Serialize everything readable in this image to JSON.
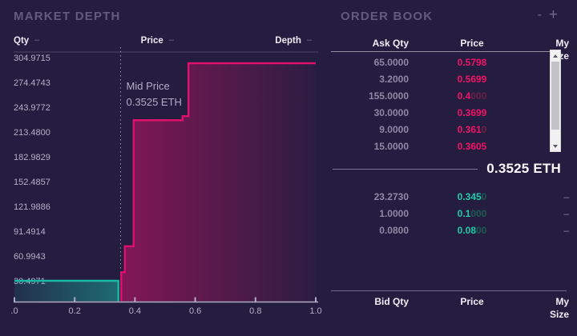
{
  "colors": {
    "background": "#241d3f",
    "ask_pink": "#e0106c",
    "ask_pink_dim": "#6c2146",
    "bid_teal": "#17b9a2",
    "bid_teal_dim": "#1d5b54",
    "axis_gray": "#b2acc6",
    "text_muted": "#8f89a6"
  },
  "chart_data": {
    "type": "area",
    "title": "MARKET DEPTH",
    "xlabel": "Price",
    "ylabel": "Qty",
    "legend": [
      {
        "label": "Qty"
      },
      {
        "label": "Price"
      },
      {
        "label": "Depth"
      }
    ],
    "legend_dash": "–",
    "x_range": [
      0,
      1.0
    ],
    "y_range": [
      0,
      310
    ],
    "x_ticks": {
      "values": [
        0,
        0.2,
        0.4,
        0.6,
        0.8,
        1.0
      ],
      "labels": [
        ".0",
        "0.2",
        "0.4",
        "0.6",
        "0.8",
        "1.0"
      ]
    },
    "y_ticks": {
      "values": [
        30.4971,
        60.9943,
        91.4914,
        121.9886,
        152.4857,
        182.9829,
        213.48,
        243.9772,
        274.4743,
        304.9715
      ],
      "labels": [
        "30.4971",
        "60.9943",
        "91.4914",
        "121.9886",
        "152.4857",
        "182.9829",
        "213.4800",
        "243.9772",
        "274.4743",
        "304.9715"
      ]
    },
    "mid_price": {
      "label": "Mid Price",
      "value_text": "0.3525 ETH",
      "x": 0.3525
    },
    "series": [
      {
        "name": "bids",
        "color": "#17b9a2",
        "points": [
          [
            0,
            30.4971
          ],
          [
            0.345,
            30.4971
          ],
          [
            0.345,
            0
          ]
        ]
      },
      {
        "name": "asks",
        "color": "#e0106c",
        "points": [
          [
            0.3545,
            0
          ],
          [
            0.3545,
            41
          ],
          [
            0.3665,
            41
          ],
          [
            0.3665,
            73
          ],
          [
            0.3955,
            73
          ],
          [
            0.3955,
            228
          ],
          [
            0.558,
            228
          ],
          [
            0.558,
            233
          ],
          [
            0.5775,
            233
          ],
          [
            0.5775,
            298
          ],
          [
            1.0,
            298
          ]
        ]
      }
    ],
    "grid": false,
    "legend_position": "top"
  },
  "order_book": {
    "title": "ORDER BOOK",
    "zoom_out_label": "-",
    "zoom_in_label": "+",
    "columns_top": [
      "Ask Qty",
      "Price",
      "My Size"
    ],
    "columns_bottom": [
      "Bid Qty",
      "Price",
      "My Size"
    ],
    "mid_price_text": "0.3525 ETH",
    "my_size_dash": "–",
    "asks": [
      {
        "qty": "65.0000",
        "price": "0.5798",
        "price_dim": ""
      },
      {
        "qty": "3.2000",
        "price": "0.5699",
        "price_dim": ""
      },
      {
        "qty": "155.0000",
        "price": "0.4",
        "price_dim": "000"
      },
      {
        "qty": "30.0000",
        "price": "0.3699",
        "price_dim": ""
      },
      {
        "qty": "9.0000",
        "price": "0.361",
        "price_dim": "0"
      },
      {
        "qty": "15.0000",
        "price": "0.3605",
        "price_dim": ""
      }
    ],
    "bids": [
      {
        "qty": "23.2730",
        "price": "0.345",
        "price_dim": "0"
      },
      {
        "qty": "1.0000",
        "price": "0.1",
        "price_dim": "000"
      },
      {
        "qty": "0.0800",
        "price": "0.08",
        "price_dim": "00"
      }
    ]
  }
}
